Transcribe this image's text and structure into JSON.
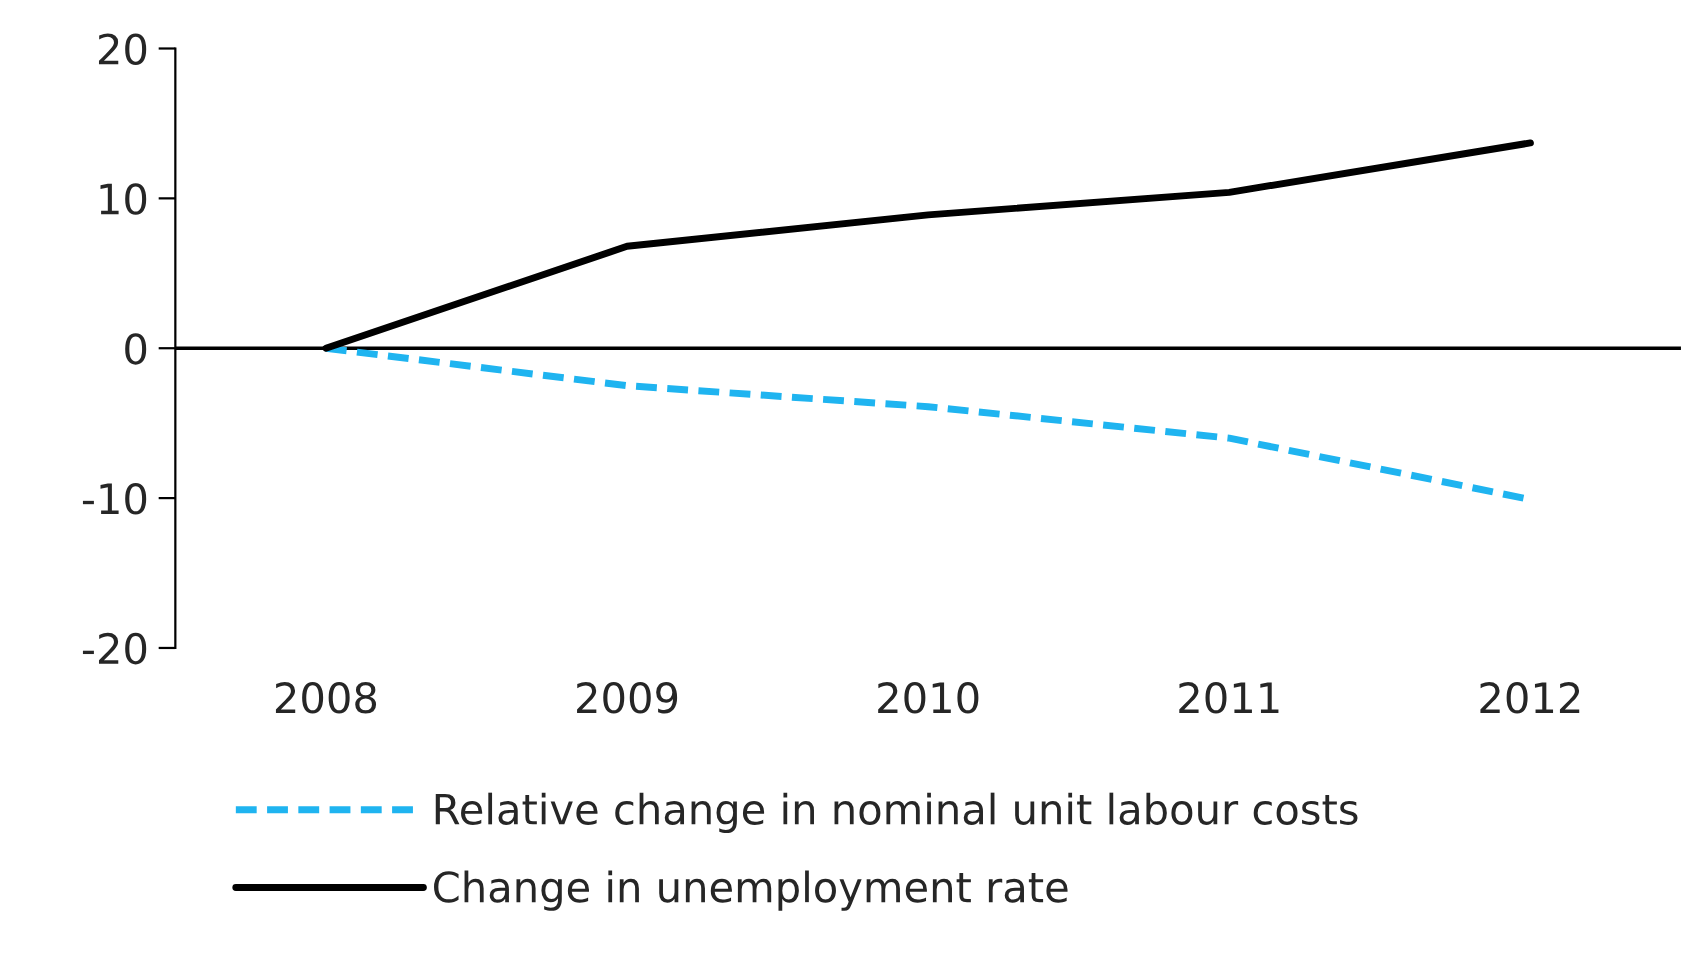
{
  "chart_data": {
    "type": "line",
    "categories": [
      "2008",
      "2009",
      "2010",
      "2011",
      "2012"
    ],
    "series": [
      {
        "name": "Relative change in nominal unit labour costs",
        "color": "#1fb4f0",
        "values": [
          0,
          -2.5,
          -3.9,
          -6.0,
          -10.1
        ],
        "line_style": "dashed"
      },
      {
        "name": "Change in unemployment rate",
        "color": "#000000",
        "values": [
          0,
          6.8,
          8.9,
          10.4,
          13.7
        ],
        "line_style": "solid"
      }
    ],
    "ref_lines": [
      {
        "axis": "y",
        "value": 0,
        "color": "#000000",
        "line_style": "solid"
      }
    ],
    "ylim": [
      -20,
      20
    ],
    "yticks": [
      -20,
      -10,
      0,
      10,
      20
    ],
    "grid": false,
    "legend": "bottom",
    "marker": "none"
  }
}
